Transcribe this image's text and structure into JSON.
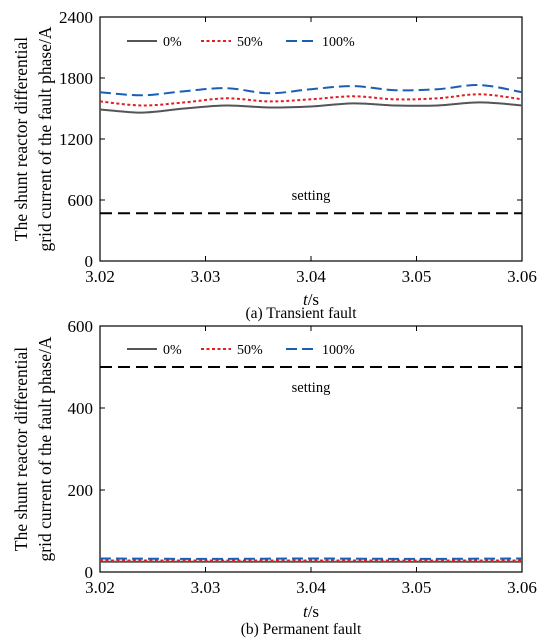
{
  "chart_data": [
    {
      "type": "line",
      "caption": "(a) Transient fault",
      "xlabel": "t/s",
      "ylabel_lines": [
        "The shunt reactor differential",
        "grid current of the fault phase/A"
      ],
      "xlim": [
        3.02,
        3.06
      ],
      "ylim": [
        0,
        2400
      ],
      "xticks": [
        "3.02",
        "3.03",
        "3.04",
        "3.05",
        "3.06"
      ],
      "yticks": [
        "0",
        "600",
        "1200",
        "1800",
        "2400"
      ],
      "legend_position": "top-left",
      "grid": false,
      "series": [
        {
          "name": "0%",
          "color": "#555555",
          "dash": "solid",
          "x": [
            3.02,
            3.024,
            3.028,
            3.032,
            3.036,
            3.04,
            3.044,
            3.048,
            3.052,
            3.056,
            3.06
          ],
          "y": [
            1490,
            1460,
            1500,
            1530,
            1510,
            1520,
            1550,
            1530,
            1530,
            1560,
            1530
          ]
        },
        {
          "name": "50%",
          "color": "#e02020",
          "dash": "dot",
          "x": [
            3.02,
            3.024,
            3.028,
            3.032,
            3.036,
            3.04,
            3.044,
            3.048,
            3.052,
            3.056,
            3.06
          ],
          "y": [
            1570,
            1530,
            1560,
            1600,
            1570,
            1590,
            1620,
            1590,
            1600,
            1640,
            1590
          ]
        },
        {
          "name": "100%",
          "color": "#1a5fb4",
          "dash": "dash",
          "x": [
            3.02,
            3.024,
            3.028,
            3.032,
            3.036,
            3.04,
            3.044,
            3.048,
            3.052,
            3.056,
            3.06
          ],
          "y": [
            1660,
            1630,
            1670,
            1700,
            1650,
            1690,
            1720,
            1680,
            1690,
            1730,
            1660
          ]
        }
      ],
      "reference_line": {
        "label": "setting",
        "y": 470,
        "color": "#000000"
      }
    },
    {
      "type": "line",
      "caption": "(b) Permanent fault",
      "xlabel": "t/s",
      "ylabel_lines": [
        "The shunt reactor differential",
        "grid current of the fault phase/A"
      ],
      "xlim": [
        3.02,
        3.06
      ],
      "ylim": [
        0,
        600
      ],
      "xticks": [
        "3.02",
        "3.03",
        "3.04",
        "3.05",
        "3.06"
      ],
      "yticks": [
        "0",
        "200",
        "400",
        "600"
      ],
      "legend_position": "top-left",
      "grid": false,
      "series": [
        {
          "name": "0%",
          "color": "#555555",
          "dash": "solid",
          "x": [
            3.02,
            3.03,
            3.04,
            3.05,
            3.06
          ],
          "y": [
            25,
            25,
            25,
            25,
            25
          ]
        },
        {
          "name": "50%",
          "color": "#e02020",
          "dash": "dot",
          "x": [
            3.02,
            3.03,
            3.04,
            3.05,
            3.06
          ],
          "y": [
            28,
            28,
            28,
            28,
            28
          ]
        },
        {
          "name": "100%",
          "color": "#1a5fb4",
          "dash": "dash",
          "x": [
            3.02,
            3.03,
            3.04,
            3.05,
            3.06
          ],
          "y": [
            33,
            32,
            33,
            32,
            33
          ]
        }
      ],
      "reference_line": {
        "label": "setting",
        "y": 500,
        "color": "#000000"
      }
    }
  ]
}
